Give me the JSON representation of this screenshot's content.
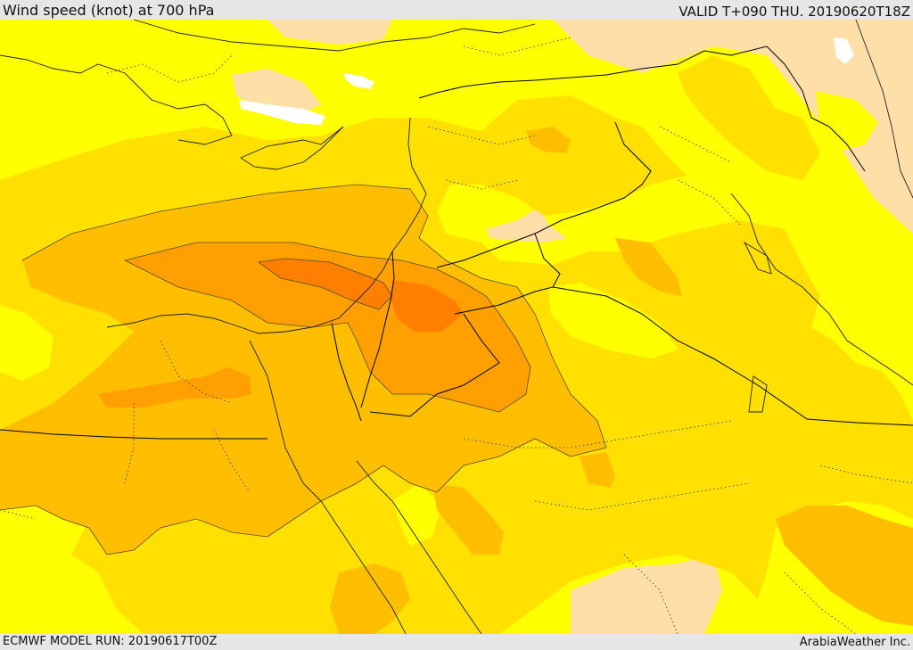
{
  "header": {
    "title": "Wind speed (knot) at 700 hPa",
    "valid_time": "VALID T+090 THU. 20190620T18Z"
  },
  "footer": {
    "model_run": "ECMWF MODEL RUN: 20190617T00Z",
    "credit": "ArabiaWeather Inc."
  },
  "colors": {
    "below_lowest": "#ffdfa8",
    "band_1": "#ffff00",
    "band_2": "#ffe000",
    "band_3": "#ffbf00",
    "band_4": "#ff9f00",
    "band_5": "#ff7f00",
    "water": "#ffffff",
    "coastline": "#222222",
    "border": "#000000"
  }
}
